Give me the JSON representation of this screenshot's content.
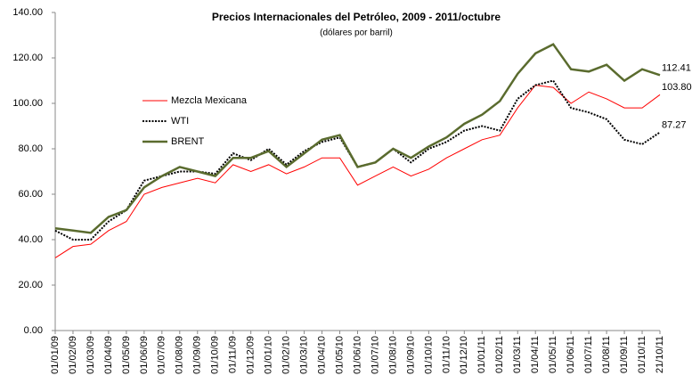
{
  "chart_data": {
    "type": "line",
    "title": "Precios Internacionales del Petróleo, 2009 - 2011/octubre",
    "subtitle": "(dólares por barril)",
    "categories": [
      "01/01/09",
      "01/02/09",
      "01/03/09",
      "01/04/09",
      "01/05/09",
      "01/06/09",
      "01/07/09",
      "01/08/09",
      "01/09/09",
      "01/10/09",
      "01/11/09",
      "01/12/09",
      "01/01/10",
      "01/02/10",
      "01/03/10",
      "01/04/10",
      "01/05/10",
      "01/06/10",
      "01/07/10",
      "01/08/10",
      "01/09/10",
      "01/10/10",
      "01/11/10",
      "01/12/10",
      "01/01/11",
      "01/02/11",
      "01/03/11",
      "01/04/11",
      "01/05/11",
      "01/06/11",
      "01/07/11",
      "01/08/11",
      "01/09/11",
      "01/10/11",
      "21/10/11"
    ],
    "series": [
      {
        "name": "Mezcla Mexicana",
        "color": "#ff0000",
        "style": "solid",
        "width": 1,
        "values": [
          32,
          37,
          38,
          44,
          48,
          60,
          63,
          65,
          67,
          65,
          73,
          70,
          73,
          69,
          72,
          76,
          76,
          64,
          68,
          72,
          68,
          71,
          76,
          80,
          84,
          86,
          98,
          108,
          107,
          100,
          105,
          102,
          98,
          98,
          103.8
        ],
        "value_labels": [
          null,
          null,
          null,
          null,
          null,
          null,
          null,
          null,
          null,
          null,
          null,
          null,
          null,
          null,
          null,
          null,
          null,
          null,
          null,
          null,
          null,
          null,
          null,
          null,
          null,
          null,
          null,
          null,
          null,
          null,
          null,
          null,
          null,
          null,
          "103.80"
        ]
      },
      {
        "name": "WTI",
        "color": "#000000",
        "style": "dotted",
        "width": 2,
        "values": [
          44,
          40,
          40,
          48,
          53,
          66,
          68,
          70,
          70,
          69,
          78,
          75,
          80,
          73,
          79,
          83,
          85,
          72,
          74,
          80,
          74,
          80,
          83,
          88,
          90,
          88,
          102,
          108,
          110,
          98,
          96,
          93,
          84,
          82,
          87.27
        ],
        "value_labels": [
          null,
          null,
          null,
          null,
          null,
          null,
          null,
          null,
          null,
          null,
          null,
          null,
          null,
          null,
          null,
          null,
          null,
          null,
          null,
          null,
          null,
          null,
          null,
          null,
          null,
          null,
          null,
          null,
          null,
          null,
          null,
          null,
          null,
          null,
          "87.27"
        ]
      },
      {
        "name": "BRENT",
        "color": "#5a6b2e",
        "style": "solid",
        "width": 2.5,
        "values": [
          45,
          44,
          43,
          50,
          53,
          63,
          68,
          72,
          70,
          68,
          76,
          76,
          79,
          72,
          78,
          84,
          86,
          72,
          74,
          80,
          76,
          81,
          85,
          91,
          95,
          101,
          113,
          122,
          126,
          115,
          114,
          117,
          110,
          115,
          112.41
        ],
        "value_labels": [
          null,
          null,
          null,
          null,
          null,
          null,
          null,
          null,
          null,
          null,
          null,
          null,
          null,
          null,
          null,
          null,
          null,
          null,
          null,
          null,
          null,
          null,
          null,
          null,
          null,
          null,
          null,
          null,
          null,
          null,
          null,
          null,
          null,
          null,
          "112.41"
        ]
      }
    ],
    "ylim": [
      0,
      140
    ],
    "yticks": [
      {
        "value": 0,
        "label": "0.00"
      },
      {
        "value": 20,
        "label": "20.00"
      },
      {
        "value": 40,
        "label": "40.00"
      },
      {
        "value": 60,
        "label": "60.00"
      },
      {
        "value": 80,
        "label": "80.00"
      },
      {
        "value": 100,
        "label": "100.00"
      },
      {
        "value": 120,
        "label": "120.00"
      },
      {
        "value": 140,
        "label": "140.00"
      }
    ],
    "legend": "left"
  }
}
